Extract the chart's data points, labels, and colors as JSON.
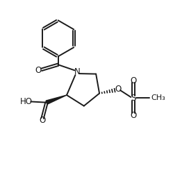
{
  "bg_color": "#ffffff",
  "line_color": "#1a1a1a",
  "line_width": 1.4,
  "figure_width": 2.49,
  "figure_height": 2.58,
  "dpi": 100,
  "xlim": [
    0,
    10
  ],
  "ylim": [
    0,
    10.35
  ]
}
